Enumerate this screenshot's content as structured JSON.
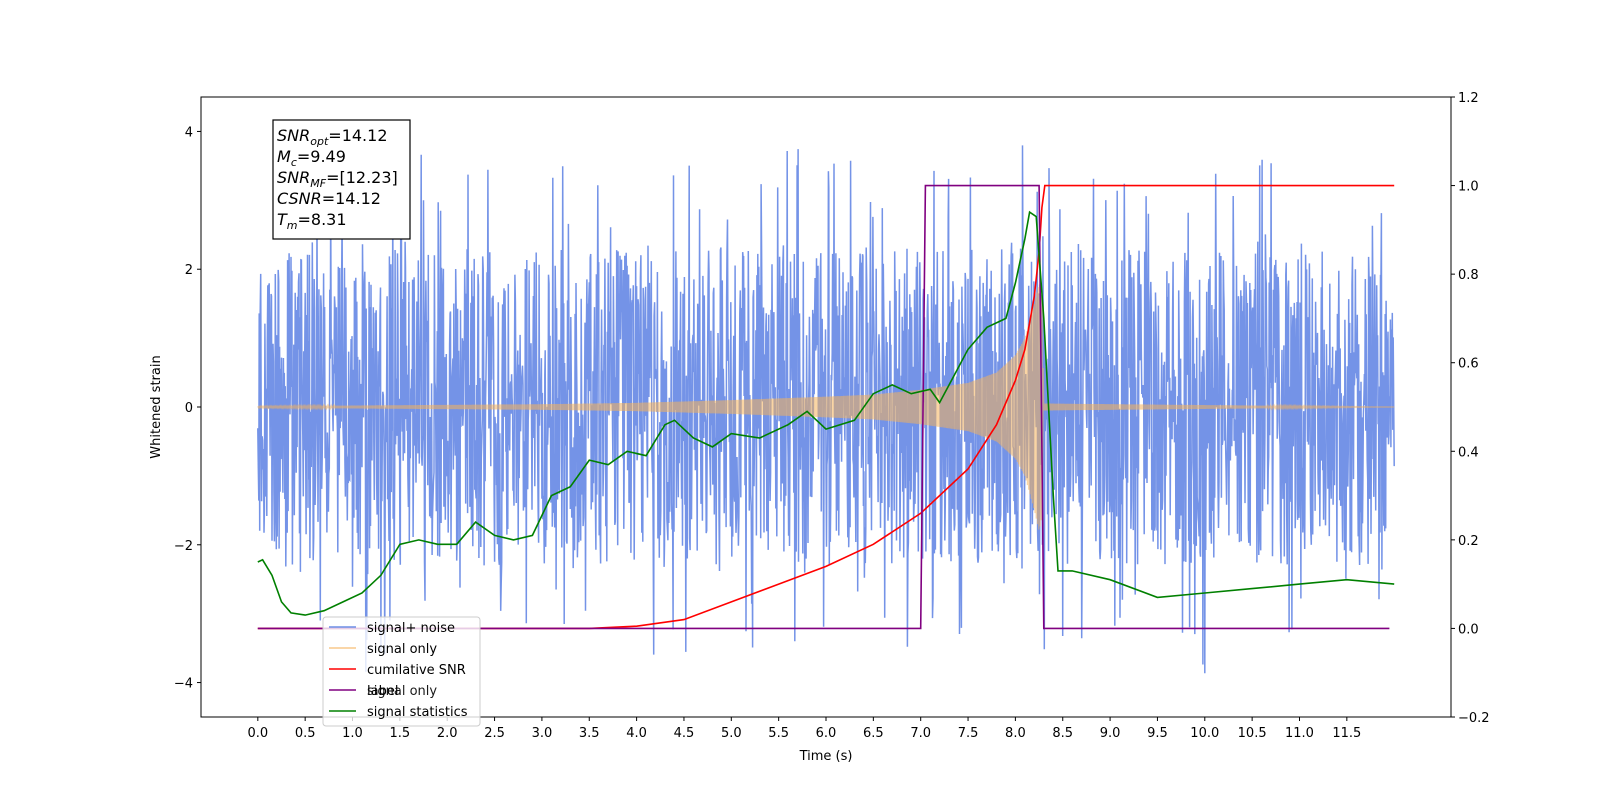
{
  "chart_data": {
    "type": "line",
    "xlabel": "Time (s)",
    "ylabel": "Whitened strain",
    "xlim": [
      -0.6,
      12.6
    ],
    "ylim": [
      -4.5,
      4.5
    ],
    "y2lim": [
      -0.2,
      1.2
    ],
    "x_ticks": [
      "0.0",
      "0.5",
      "1.0",
      "1.5",
      "2.0",
      "2.5",
      "3.0",
      "3.5",
      "4.0",
      "4.5",
      "5.0",
      "5.5",
      "6.0",
      "6.5",
      "7.0",
      "7.5",
      "8.0",
      "8.5",
      "9.0",
      "9.5",
      "10.0",
      "10.5",
      "11.0",
      "11.5"
    ],
    "y_ticks": [
      "4",
      "2",
      "0",
      "−2",
      "−4"
    ],
    "y2_ticks": [
      "1.2",
      "1.0",
      "0.8",
      "0.6",
      "0.4",
      "0.2",
      "0.0",
      "−0.2"
    ],
    "info_box": [
      {
        "base": "SNR",
        "sub": "opt",
        "value": "=14.12"
      },
      {
        "base": "M",
        "sub": "c",
        "value": "=9.49"
      },
      {
        "base": "SNR",
        "sub": "MF",
        "value": "=[12.23]"
      },
      {
        "base": "CSNR",
        "sub": "",
        "value": "=14.12"
      },
      {
        "base": "T",
        "sub": "m",
        "value": "=8.31"
      }
    ],
    "legend": {
      "location": "lower-left",
      "entries": [
        "signal+ noise",
        "signal only",
        "cumilative SNR",
        "label",
        "signal statistics"
      ]
    },
    "occluded_legend_text": "signal only",
    "series": [
      {
        "name": "signal+ noise",
        "axis": "left",
        "color": "#6d8de6",
        "kind": "noise",
        "x_range": [
          0.0,
          12.0
        ],
        "amplitude_std": 1.0,
        "approx_envelope_max": [
          [
            0,
            2.1
          ],
          [
            1,
            3.6
          ],
          [
            2,
            3.8
          ],
          [
            3,
            3.7
          ],
          [
            4,
            3.9
          ],
          [
            5,
            3.8
          ],
          [
            5.4,
            4.1
          ],
          [
            6,
            3.6
          ],
          [
            7,
            3.5
          ],
          [
            8,
            4.05
          ],
          [
            9,
            3.5
          ],
          [
            10,
            3.8
          ],
          [
            11,
            3.7
          ],
          [
            12,
            3.0
          ]
        ],
        "approx_envelope_min": [
          [
            0,
            -3.1
          ],
          [
            1,
            -3.9
          ],
          [
            2,
            -3.5
          ],
          [
            3,
            -3.2
          ],
          [
            4,
            -3.7
          ],
          [
            5,
            -3.6
          ],
          [
            6,
            -3.4
          ],
          [
            7,
            -3.5
          ],
          [
            8,
            -3.8
          ],
          [
            9,
            -3.3
          ],
          [
            9.75,
            -4.1
          ],
          [
            11,
            -3.7
          ],
          [
            12,
            -2.7
          ]
        ]
      },
      {
        "name": "signal only",
        "axis": "left",
        "color": "#f5b25a",
        "kind": "chirp",
        "envelope": [
          [
            0,
            0.01
          ],
          [
            3,
            0.04
          ],
          [
            4,
            0.06
          ],
          [
            5,
            0.1
          ],
          [
            6,
            0.15
          ],
          [
            6.5,
            0.18
          ],
          [
            7,
            0.25
          ],
          [
            7.5,
            0.35
          ],
          [
            7.8,
            0.5
          ],
          [
            8.0,
            0.75
          ],
          [
            8.1,
            1.0
          ],
          [
            8.2,
            1.5
          ],
          [
            8.25,
            1.8
          ],
          [
            8.28,
            1.6
          ],
          [
            8.3,
            0.05
          ],
          [
            12,
            0.0
          ]
        ],
        "merger_time": 8.31
      },
      {
        "name": "cumilative SNR",
        "axis": "right",
        "color": "#ff0000",
        "points": [
          [
            0,
            0
          ],
          [
            3.5,
            0.0
          ],
          [
            4,
            0.005
          ],
          [
            4.5,
            0.02
          ],
          [
            5,
            0.06
          ],
          [
            5.5,
            0.1
          ],
          [
            6,
            0.14
          ],
          [
            6.5,
            0.19
          ],
          [
            7,
            0.26
          ],
          [
            7.5,
            0.36
          ],
          [
            7.8,
            0.46
          ],
          [
            8.0,
            0.56
          ],
          [
            8.1,
            0.63
          ],
          [
            8.2,
            0.75
          ],
          [
            8.25,
            0.85
          ],
          [
            8.28,
            0.95
          ],
          [
            8.31,
            1.0
          ],
          [
            12,
            1.0
          ]
        ]
      },
      {
        "name": "label",
        "axis": "right",
        "color": "#800080",
        "points": [
          [
            0,
            0
          ],
          [
            7.0,
            0
          ],
          [
            7.05,
            1
          ],
          [
            8.25,
            1
          ],
          [
            8.3,
            0
          ],
          [
            11.95,
            0
          ]
        ]
      },
      {
        "name": "signal statistics",
        "axis": "right",
        "color": "#008000",
        "points": [
          [
            0,
            0.15
          ],
          [
            0.05,
            0.155
          ],
          [
            0.15,
            0.12
          ],
          [
            0.25,
            0.06
          ],
          [
            0.35,
            0.035
          ],
          [
            0.5,
            0.03
          ],
          [
            0.7,
            0.04
          ],
          [
            0.9,
            0.06
          ],
          [
            1.1,
            0.08
          ],
          [
            1.3,
            0.12
          ],
          [
            1.5,
            0.19
          ],
          [
            1.7,
            0.2
          ],
          [
            1.9,
            0.19
          ],
          [
            2.1,
            0.19
          ],
          [
            2.3,
            0.24
          ],
          [
            2.5,
            0.21
          ],
          [
            2.7,
            0.2
          ],
          [
            2.9,
            0.21
          ],
          [
            3.1,
            0.3
          ],
          [
            3.3,
            0.32
          ],
          [
            3.5,
            0.38
          ],
          [
            3.7,
            0.37
          ],
          [
            3.9,
            0.4
          ],
          [
            4.1,
            0.39
          ],
          [
            4.3,
            0.46
          ],
          [
            4.4,
            0.47
          ],
          [
            4.6,
            0.43
          ],
          [
            4.8,
            0.41
          ],
          [
            5.0,
            0.44
          ],
          [
            5.3,
            0.43
          ],
          [
            5.6,
            0.46
          ],
          [
            5.8,
            0.49
          ],
          [
            6.0,
            0.45
          ],
          [
            6.3,
            0.47
          ],
          [
            6.5,
            0.53
          ],
          [
            6.7,
            0.55
          ],
          [
            6.9,
            0.53
          ],
          [
            7.1,
            0.54
          ],
          [
            7.2,
            0.51
          ],
          [
            7.3,
            0.55
          ],
          [
            7.5,
            0.63
          ],
          [
            7.7,
            0.68
          ],
          [
            7.9,
            0.7
          ],
          [
            8.0,
            0.78
          ],
          [
            8.1,
            0.88
          ],
          [
            8.15,
            0.94
          ],
          [
            8.22,
            0.93
          ],
          [
            8.3,
            0.7
          ],
          [
            8.4,
            0.3
          ],
          [
            8.45,
            0.13
          ],
          [
            8.6,
            0.13
          ],
          [
            9.0,
            0.11
          ],
          [
            9.5,
            0.07
          ],
          [
            10.0,
            0.08
          ],
          [
            10.5,
            0.09
          ],
          [
            11.0,
            0.1
          ],
          [
            11.5,
            0.11
          ],
          [
            12.0,
            0.1
          ]
        ]
      }
    ]
  }
}
